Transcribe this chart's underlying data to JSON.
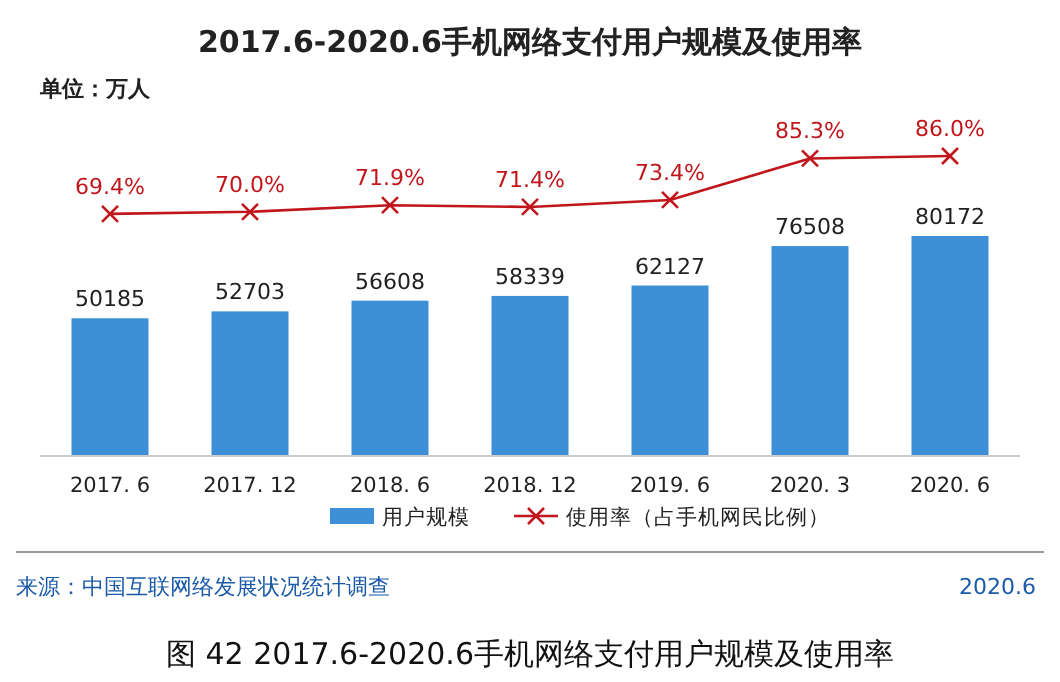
{
  "chart_data": [
    {
      "type": "bar",
      "categories": [
        "2017. 6",
        "2017. 12",
        "2018. 6",
        "2018. 12",
        "2019. 6",
        "2020. 3",
        "2020. 6"
      ],
      "series": [
        {
          "name": "用户规模",
          "color": "#3d8fd6",
          "values": [
            50185,
            52703,
            56608,
            58339,
            62127,
            76508,
            80172
          ],
          "value_labels": [
            "50185",
            "52703",
            "56608",
            "58339",
            "62127",
            "76508",
            "80172"
          ]
        }
      ],
      "legend": "bottom",
      "annotations": [
        "来源：中国互联网络发展状况统计调查",
        "2020.6",
        "图 42 2017.6-2020.6手机网络支付用户规模及使用率",
        "单位：万人"
      ]
    },
    {
      "type": "line",
      "title": "2017.6-2020.6手机网络支付用户规模及使用率",
      "categories": [
        null,
        null,
        null,
        null,
        null,
        null,
        null
      ],
      "series": [
        {
          "name": "使用率（占手机网民比例）",
          "color": "#c0161c",
          "values": [
            69.4,
            70.0,
            71.9,
            71.4,
            73.4,
            85.3,
            86.0
          ],
          "value_labels": [
            "69.4%",
            "70.0%",
            "71.9%",
            "71.4%",
            "73.4%",
            "85.3%",
            "86.0%"
          ]
        }
      ],
      "marker": "cross",
      "legend": "bottom"
    }
  ]
}
